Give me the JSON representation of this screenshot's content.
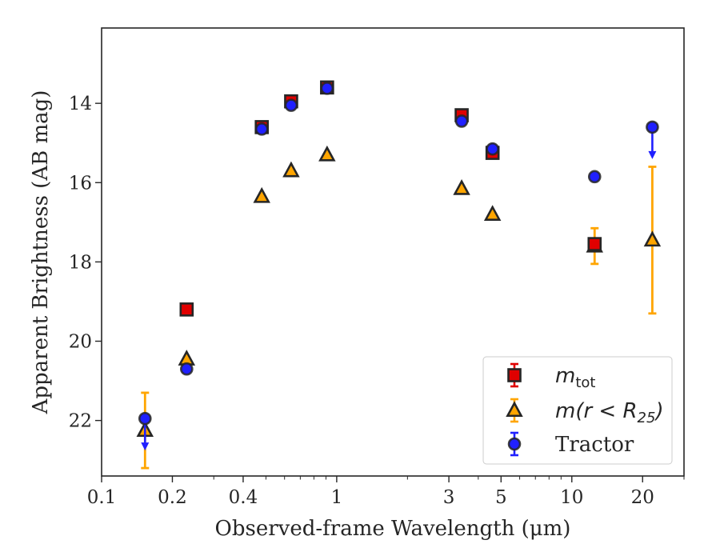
{
  "chart_data": {
    "type": "scatter",
    "title": "",
    "xlabel": "Observed-frame Wavelength (μm)",
    "ylabel": "Apparent Brightness (AB mag)",
    "xscale": "log",
    "xlim": [
      0.1,
      30
    ],
    "ylim": [
      23.4,
      12.1
    ],
    "y_inverted": true,
    "x_ticks": [
      0.1,
      0.2,
      0.4,
      1,
      3,
      5,
      10,
      20
    ],
    "x_tick_labels": [
      "0.1",
      "0.2",
      "0.4",
      "1",
      "3",
      "5",
      "10",
      "20"
    ],
    "y_ticks": [
      14,
      16,
      18,
      20,
      22
    ],
    "y_tick_labels": [
      "14",
      "16",
      "18",
      "20",
      "22"
    ],
    "grid": false,
    "legend_position": "lower-right",
    "series": [
      {
        "name": "m_tot",
        "legend_main": "m",
        "legend_sub": "tot",
        "marker": "square",
        "color": "#e00000",
        "edge_color": "#262626",
        "points": [
          {
            "x": 0.23,
            "y": 19.2
          },
          {
            "x": 0.48,
            "y": 14.6
          },
          {
            "x": 0.64,
            "y": 13.95
          },
          {
            "x": 0.91,
            "y": 13.6
          },
          {
            "x": 3.4,
            "y": 14.3
          },
          {
            "x": 4.6,
            "y": 15.25
          },
          {
            "x": 12.5,
            "y": 17.55
          }
        ]
      },
      {
        "name": "m(r < R25)",
        "legend_main": "m(r < R",
        "legend_sub": "25",
        "legend_tail": ")",
        "marker": "triangle",
        "color": "#ffa500",
        "edge_color": "#262626",
        "points": [
          {
            "x": 0.153,
            "y": 22.25,
            "err": 0.95
          },
          {
            "x": 0.23,
            "y": 20.45
          },
          {
            "x": 0.48,
            "y": 16.35
          },
          {
            "x": 0.64,
            "y": 15.7
          },
          {
            "x": 0.91,
            "y": 15.3
          },
          {
            "x": 3.4,
            "y": 16.15
          },
          {
            "x": 4.6,
            "y": 16.8
          },
          {
            "x": 12.5,
            "y": 17.6,
            "err": 0.45
          },
          {
            "x": 22,
            "y": 17.45,
            "err": 1.85
          }
        ]
      },
      {
        "name": "Tractor",
        "legend_main": "Tractor",
        "marker": "circle",
        "color": "#2020ff",
        "edge_color": "#262626",
        "points": [
          {
            "x": 0.153,
            "y": 21.95,
            "upper_limit": true
          },
          {
            "x": 0.23,
            "y": 20.7
          },
          {
            "x": 0.48,
            "y": 14.65
          },
          {
            "x": 0.64,
            "y": 14.05
          },
          {
            "x": 0.91,
            "y": 13.62
          },
          {
            "x": 3.4,
            "y": 14.45
          },
          {
            "x": 4.6,
            "y": 15.15
          },
          {
            "x": 12.5,
            "y": 15.85
          },
          {
            "x": 22,
            "y": 14.6,
            "upper_limit": true
          }
        ]
      }
    ]
  }
}
